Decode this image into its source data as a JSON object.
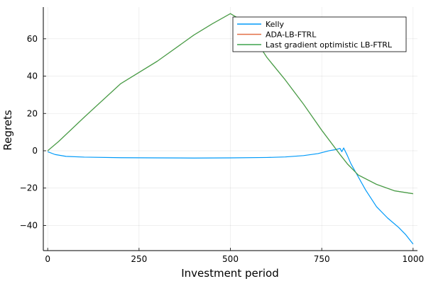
{
  "chart_data": {
    "type": "line",
    "xlabel": "Investment period",
    "ylabel": "Regrets",
    "xlim": [
      -12,
      1012
    ],
    "ylim": [
      -53.5,
      77
    ],
    "xticks": [
      0,
      250,
      500,
      750,
      1000
    ],
    "yticks": [
      -40,
      -20,
      0,
      20,
      40,
      60
    ],
    "grid": true,
    "legend_position": "top-right",
    "series": [
      {
        "name": "Kelly",
        "color": "#009af9",
        "x": [
          0,
          20,
          50,
          100,
          200,
          300,
          400,
          500,
          600,
          650,
          700,
          740,
          770,
          790,
          800,
          805,
          810,
          820,
          830,
          850,
          870,
          900,
          930,
          960,
          980,
          1000
        ],
        "y": [
          -0.5,
          -2.0,
          -3.0,
          -3.4,
          -3.7,
          -3.8,
          -3.9,
          -3.8,
          -3.6,
          -3.3,
          -2.6,
          -1.5,
          0.0,
          0.7,
          1.3,
          -0.5,
          1.5,
          -2.5,
          -7.0,
          -14.0,
          -21.0,
          -30.0,
          -36.0,
          -41.0,
          -45.0,
          -50.0
        ]
      },
      {
        "name": "ADA-LB-FTRL",
        "color": "#e26f46",
        "x": [
          0,
          30,
          100,
          200,
          300,
          400,
          450,
          500,
          530,
          560,
          600,
          650,
          700,
          750,
          800,
          820,
          850,
          900,
          950,
          1000
        ],
        "y": [
          0,
          5,
          18,
          36,
          48,
          62,
          68,
          73.5,
          70,
          62,
          50,
          38,
          25,
          11,
          -2,
          -7,
          -13,
          -18,
          -21.5,
          -23
        ]
      },
      {
        "name": "Last gradient optimistic LB-FTRL",
        "color": "#3da44d",
        "x": [
          0,
          30,
          100,
          200,
          300,
          400,
          450,
          500,
          530,
          560,
          600,
          650,
          700,
          750,
          800,
          820,
          850,
          900,
          950,
          1000
        ],
        "y": [
          0,
          5,
          18,
          36,
          48,
          62,
          68,
          73.5,
          70,
          62,
          50,
          38,
          25,
          11,
          -2,
          -7,
          -13,
          -18,
          -21.5,
          -23
        ]
      }
    ]
  }
}
